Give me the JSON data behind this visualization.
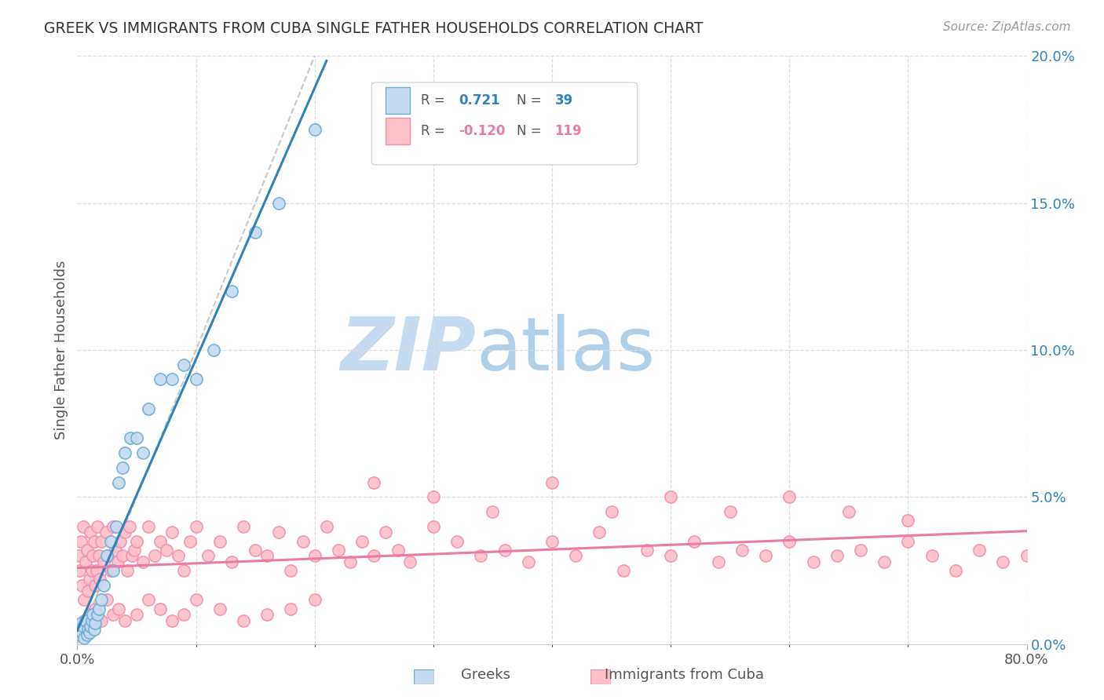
{
  "title": "GREEK VS IMMIGRANTS FROM CUBA SINGLE FATHER HOUSEHOLDS CORRELATION CHART",
  "source": "Source: ZipAtlas.com",
  "ylabel": "Single Father Households",
  "ytick_labels": [
    "0.0%",
    "5.0%",
    "10.0%",
    "15.0%",
    "20.0%"
  ],
  "yticks": [
    0.0,
    0.05,
    0.1,
    0.15,
    0.2
  ],
  "xtick_labels": [
    "0.0%",
    "",
    "",
    "",
    "",
    "",
    "",
    "",
    "80.0%"
  ],
  "xticks": [
    0.0,
    0.1,
    0.2,
    0.3,
    0.4,
    0.5,
    0.6,
    0.7,
    0.8
  ],
  "r_greek": 0.721,
  "n_greek": 39,
  "r_cuba": -0.12,
  "n_cuba": 119,
  "legend_labels": [
    "Greeks",
    "Immigrants from Cuba"
  ],
  "color_greek_fill": "#c6dbef",
  "color_greek_edge": "#6baed6",
  "color_greek_line": "#3182bd",
  "color_cuba_fill": "#fcc0c8",
  "color_cuba_edge": "#f48fb1",
  "color_cuba_line": "#e87ba8",
  "color_diag_line": "#bbbbbb",
  "watermark_zip_color": "#c6dbef",
  "watermark_atlas_color": "#b0cfe8",
  "greek_x": [
    0.001,
    0.002,
    0.003,
    0.004,
    0.005,
    0.006,
    0.007,
    0.008,
    0.009,
    0.01,
    0.011,
    0.012,
    0.013,
    0.014,
    0.015,
    0.017,
    0.018,
    0.02,
    0.022,
    0.025,
    0.028,
    0.03,
    0.033,
    0.035,
    0.038,
    0.04,
    0.045,
    0.05,
    0.055,
    0.06,
    0.07,
    0.08,
    0.09,
    0.1,
    0.115,
    0.13,
    0.15,
    0.17,
    0.2
  ],
  "greek_y": [
    0.005,
    0.003,
    0.007,
    0.004,
    0.006,
    0.002,
    0.008,
    0.003,
    0.005,
    0.004,
    0.006,
    0.008,
    0.01,
    0.005,
    0.007,
    0.01,
    0.012,
    0.015,
    0.02,
    0.03,
    0.035,
    0.025,
    0.04,
    0.055,
    0.06,
    0.065,
    0.07,
    0.07,
    0.065,
    0.08,
    0.09,
    0.09,
    0.095,
    0.09,
    0.1,
    0.12,
    0.14,
    0.15,
    0.175
  ],
  "cuba_x": [
    0.001,
    0.002,
    0.003,
    0.004,
    0.005,
    0.006,
    0.007,
    0.008,
    0.009,
    0.01,
    0.011,
    0.012,
    0.013,
    0.014,
    0.015,
    0.016,
    0.017,
    0.018,
    0.019,
    0.02,
    0.022,
    0.024,
    0.026,
    0.028,
    0.03,
    0.032,
    0.034,
    0.036,
    0.038,
    0.04,
    0.042,
    0.044,
    0.046,
    0.048,
    0.05,
    0.055,
    0.06,
    0.065,
    0.07,
    0.075,
    0.08,
    0.085,
    0.09,
    0.095,
    0.1,
    0.11,
    0.12,
    0.13,
    0.14,
    0.15,
    0.16,
    0.17,
    0.18,
    0.19,
    0.2,
    0.21,
    0.22,
    0.23,
    0.24,
    0.25,
    0.26,
    0.27,
    0.28,
    0.3,
    0.32,
    0.34,
    0.36,
    0.38,
    0.4,
    0.42,
    0.44,
    0.46,
    0.48,
    0.5,
    0.52,
    0.54,
    0.56,
    0.58,
    0.6,
    0.62,
    0.64,
    0.66,
    0.68,
    0.7,
    0.72,
    0.74,
    0.76,
    0.78,
    0.8,
    0.003,
    0.006,
    0.01,
    0.015,
    0.02,
    0.025,
    0.03,
    0.035,
    0.04,
    0.05,
    0.06,
    0.07,
    0.08,
    0.09,
    0.1,
    0.12,
    0.14,
    0.16,
    0.18,
    0.2,
    0.25,
    0.3,
    0.35,
    0.4,
    0.45,
    0.5,
    0.55,
    0.6,
    0.65,
    0.7
  ],
  "cuba_y": [
    0.03,
    0.025,
    0.035,
    0.02,
    0.04,
    0.015,
    0.028,
    0.032,
    0.018,
    0.022,
    0.038,
    0.025,
    0.03,
    0.035,
    0.02,
    0.025,
    0.04,
    0.03,
    0.022,
    0.035,
    0.028,
    0.038,
    0.03,
    0.025,
    0.04,
    0.032,
    0.028,
    0.035,
    0.03,
    0.038,
    0.025,
    0.04,
    0.03,
    0.032,
    0.035,
    0.028,
    0.04,
    0.03,
    0.035,
    0.032,
    0.038,
    0.03,
    0.025,
    0.035,
    0.04,
    0.03,
    0.035,
    0.028,
    0.04,
    0.032,
    0.03,
    0.038,
    0.025,
    0.035,
    0.03,
    0.04,
    0.032,
    0.028,
    0.035,
    0.03,
    0.038,
    0.032,
    0.028,
    0.04,
    0.035,
    0.03,
    0.032,
    0.028,
    0.035,
    0.03,
    0.038,
    0.025,
    0.032,
    0.03,
    0.035,
    0.028,
    0.032,
    0.03,
    0.035,
    0.028,
    0.03,
    0.032,
    0.028,
    0.035,
    0.03,
    0.025,
    0.032,
    0.028,
    0.03,
    0.005,
    0.008,
    0.01,
    0.012,
    0.008,
    0.015,
    0.01,
    0.012,
    0.008,
    0.01,
    0.015,
    0.012,
    0.008,
    0.01,
    0.015,
    0.012,
    0.008,
    0.01,
    0.012,
    0.015,
    0.055,
    0.05,
    0.045,
    0.055,
    0.045,
    0.05,
    0.045,
    0.05,
    0.045,
    0.042
  ]
}
